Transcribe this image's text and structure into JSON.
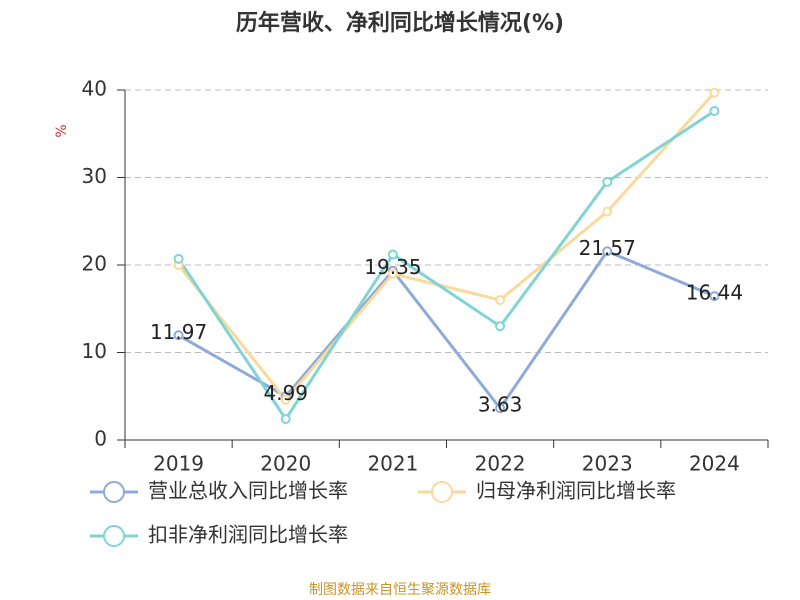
{
  "chart_data": {
    "type": "line",
    "title": "历年营收、净利同比增长情况(%)",
    "y_label": "%",
    "source": "制图数据来自恒生聚源数据库",
    "categories": [
      "2019",
      "2020",
      "2021",
      "2022",
      "2023",
      "2024"
    ],
    "series": [
      {
        "name": "营业总收入同比增长率",
        "color": "#8eaad8",
        "values": [
          11.97,
          4.99,
          19.35,
          3.63,
          21.57,
          16.44
        ],
        "show_labels": true
      },
      {
        "name": "归母净利润同比增长率",
        "color": "#fad99b",
        "values": [
          20.0,
          4.6,
          19.0,
          16.0,
          26.1,
          39.7
        ],
        "show_labels": false
      },
      {
        "name": "扣非净利润同比增长率",
        "color": "#80d4d4",
        "values": [
          20.7,
          2.4,
          21.2,
          13.0,
          29.5,
          37.6
        ],
        "show_labels": false
      }
    ],
    "ylim": [
      0,
      40
    ],
    "yticks": [
      0,
      10,
      20,
      30,
      40
    ],
    "grid": true
  }
}
